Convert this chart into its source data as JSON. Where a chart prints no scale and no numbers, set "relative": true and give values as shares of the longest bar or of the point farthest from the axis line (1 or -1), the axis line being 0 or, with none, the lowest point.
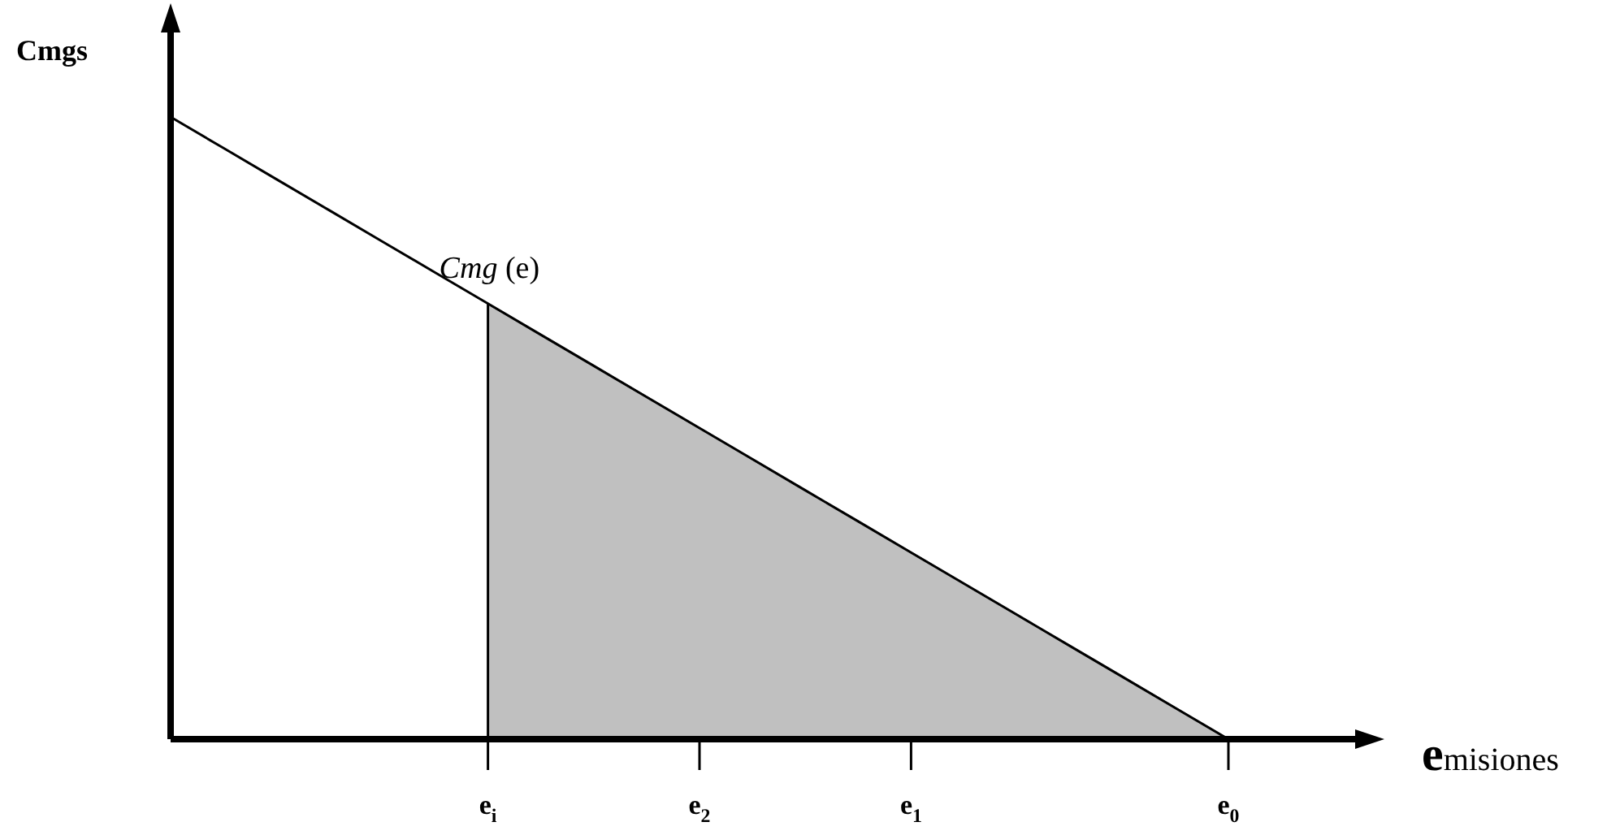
{
  "chart_data": {
    "type": "line",
    "relative": true,
    "xlabel": "emisiones",
    "ylabel": "Cmgs",
    "categories": [
      null,
      null,
      null,
      null,
      null,
      null,
      "e$_{i}$",
      null,
      null,
      null,
      "e$_{2}$",
      null,
      null,
      null,
      "e$_{1}$",
      null,
      null,
      null,
      null,
      null,
      "e$_{0}$"
    ],
    "series": [
      {
        "name": "Cmg (e)",
        "color": "#000000",
        "values": [
          1,
          0.95,
          0.9,
          0.85,
          0.8,
          0.75,
          0.7,
          0.65,
          0.6,
          0.55,
          0.5,
          0.45,
          0.4,
          0.35,
          0.3,
          0.25,
          0.2,
          0.15,
          0.1,
          0.05,
          0
        ]
      },
      {
        "type": "area",
        "color": "#c0c0c0",
        "values": [
          null,
          null,
          null,
          null,
          null,
          null,
          0.7,
          0.65,
          0.6,
          0.55,
          0.5,
          0.45,
          0.4,
          0.35,
          0.3,
          0.25,
          0.2,
          0.15,
          0.1,
          0.05,
          0
        ]
      }
    ],
    "legend": false,
    "marker": "none",
    "line_style": "solid"
  }
}
